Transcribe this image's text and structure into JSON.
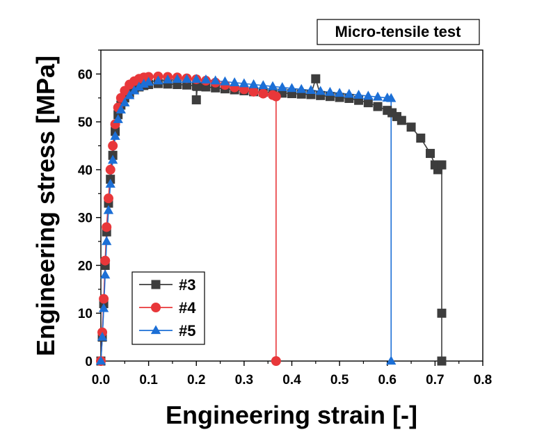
{
  "chart_data": {
    "type": "line",
    "title": "Micro-tensile test",
    "xlabel": "Engineering strain [-]",
    "ylabel": "Engineering stress [MPa]",
    "xlim": [
      0,
      0.8
    ],
    "ylim": [
      0,
      65
    ],
    "xticks": [
      "0.0",
      "0.1",
      "0.2",
      "0.3",
      "0.4",
      "0.5",
      "0.6",
      "0.7",
      "0.8"
    ],
    "yticks": [
      "0",
      "10",
      "20",
      "30",
      "40",
      "50",
      "60"
    ],
    "grid": false,
    "legend_position": "lower-left",
    "series": [
      {
        "name": "#3",
        "color": "#3d3d3d",
        "marker": "square",
        "x": [
          0,
          0.003,
          0.006,
          0.009,
          0.012,
          0.016,
          0.02,
          0.025,
          0.03,
          0.036,
          0.042,
          0.05,
          0.06,
          0.07,
          0.08,
          0.09,
          0.1,
          0.12,
          0.14,
          0.16,
          0.18,
          0.2,
          0.2,
          0.202,
          0.22,
          0.24,
          0.26,
          0.28,
          0.3,
          0.32,
          0.34,
          0.36,
          0.38,
          0.4,
          0.42,
          0.44,
          0.45,
          0.46,
          0.48,
          0.5,
          0.52,
          0.54,
          0.56,
          0.58,
          0.6,
          0.61,
          0.62,
          0.63,
          0.65,
          0.67,
          0.69,
          0.7,
          0.706,
          0.71,
          0.714,
          0.714,
          0.714
        ],
        "y": [
          0,
          5,
          12,
          20,
          27,
          33,
          38,
          43,
          48,
          51.5,
          53.5,
          55,
          56,
          56.8,
          57.3,
          57.6,
          57.8,
          58,
          57.9,
          57.8,
          57.7,
          57.5,
          54.6,
          57.4,
          57.3,
          57.1,
          56.9,
          56.7,
          56.5,
          56.3,
          56.2,
          56.1,
          56,
          55.9,
          55.8,
          55.7,
          59,
          55.5,
          55.3,
          55.1,
          54.9,
          54.5,
          54,
          53.2,
          52.4,
          51.9,
          51.1,
          50.3,
          48.9,
          46.6,
          43.4,
          41,
          40,
          41,
          41,
          10,
          0
        ]
      },
      {
        "name": "#4",
        "color": "#e8373a",
        "marker": "circle",
        "x": [
          0,
          0.003,
          0.006,
          0.009,
          0.012,
          0.016,
          0.02,
          0.025,
          0.03,
          0.036,
          0.042,
          0.05,
          0.06,
          0.07,
          0.08,
          0.09,
          0.1,
          0.12,
          0.14,
          0.16,
          0.18,
          0.2,
          0.22,
          0.24,
          0.26,
          0.28,
          0.3,
          0.32,
          0.34,
          0.36,
          0.367,
          0.367
        ],
        "y": [
          0,
          6,
          13,
          21,
          28,
          34,
          40,
          45,
          49.5,
          53,
          55,
          56.5,
          57.8,
          58.5,
          59,
          59.3,
          59.4,
          59.5,
          59.4,
          59.3,
          59.1,
          58.9,
          58.6,
          58.2,
          57.7,
          57.2,
          56.8,
          56.3,
          55.9,
          55.6,
          55.3,
          0
        ]
      },
      {
        "name": "#5",
        "color": "#1c6fd6",
        "marker": "triangle",
        "x": [
          0,
          0.003,
          0.006,
          0.009,
          0.012,
          0.016,
          0.02,
          0.025,
          0.03,
          0.036,
          0.042,
          0.05,
          0.06,
          0.07,
          0.08,
          0.09,
          0.1,
          0.12,
          0.14,
          0.16,
          0.18,
          0.2,
          0.22,
          0.24,
          0.26,
          0.28,
          0.3,
          0.32,
          0.34,
          0.36,
          0.38,
          0.4,
          0.42,
          0.44,
          0.46,
          0.48,
          0.5,
          0.52,
          0.54,
          0.56,
          0.58,
          0.6,
          0.608,
          0.608
        ],
        "y": [
          0,
          5,
          11,
          18,
          25,
          31.5,
          37,
          42,
          47,
          50.5,
          52.5,
          54,
          55.5,
          56.5,
          57.3,
          57.9,
          58.3,
          58.6,
          58.8,
          58.9,
          58.9,
          58.9,
          58.8,
          58.6,
          58.4,
          58.2,
          58,
          57.8,
          57.6,
          57.4,
          57.2,
          57,
          56.8,
          56.6,
          56.4,
          56.2,
          56,
          55.8,
          55.6,
          55.4,
          55.2,
          55,
          54.9,
          0
        ]
      }
    ]
  }
}
